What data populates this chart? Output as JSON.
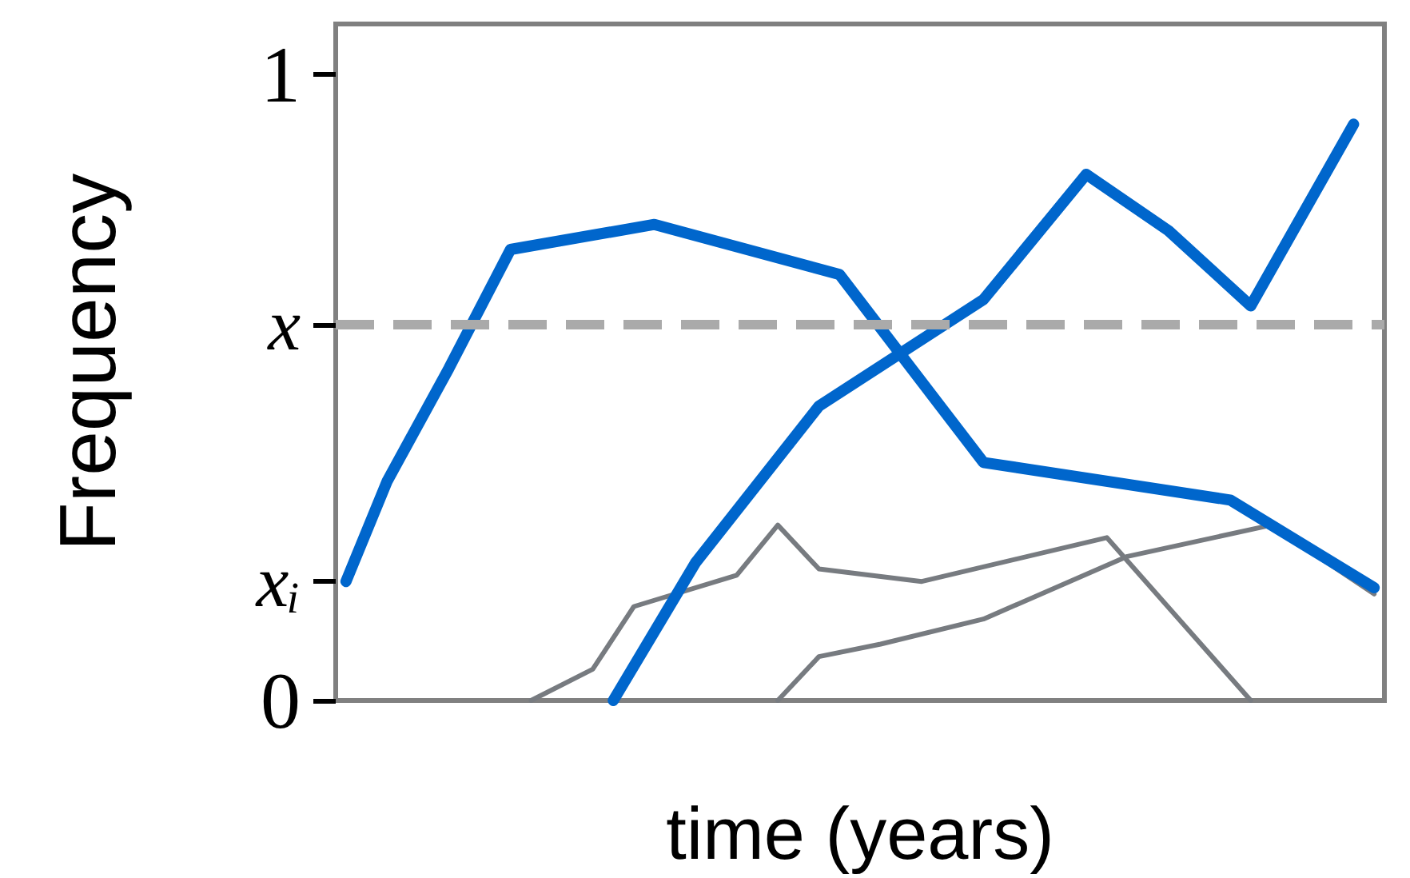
{
  "chart_data": {
    "type": "line",
    "xlabel": "time (years)",
    "ylabel": "Frequency",
    "categories": [
      null,
      null,
      null,
      null,
      null,
      null,
      null,
      null,
      null,
      null,
      null,
      null,
      null,
      null,
      null,
      null,
      null,
      null,
      null,
      null,
      null,
      null,
      null,
      null,
      null,
      null,
      null,
      null,
      null,
      null,
      null,
      null,
      null,
      null,
      null,
      null,
      null,
      null,
      null,
      null,
      null,
      null,
      null,
      null,
      null,
      null,
      null,
      null,
      null,
      null,
      null
    ],
    "ylim": [
      0,
      1.08
    ],
    "yticks": [
      0,
      {
        "value": 0.19,
        "label": "xᵢ"
      },
      {
        "value": 0.6,
        "label": "x"
      },
      1
    ],
    "tick_labels": "y",
    "grid": false,
    "marker": "none",
    "line_style": "solid",
    "ref_lines": [
      {
        "axis": "y",
        "value": 0.6,
        "label": null,
        "color": "#aaaaaa",
        "line_style": "dashed"
      }
    ],
    "series": [
      {
        "color": "#0066cc",
        "values": [
          0.19,
          null,
          0.35,
          null,
          null,
          0.53,
          null,
          null,
          0.72,
          null,
          null,
          null,
          null,
          null,
          null,
          0.76,
          null,
          null,
          null,
          null,
          null,
          null,
          null,
          null,
          0.68,
          null,
          null,
          null,
          null,
          null,
          null,
          0.38,
          null,
          null,
          null,
          null,
          null,
          null,
          null,
          null,
          null,
          null,
          null,
          0.32,
          null,
          null,
          null,
          null,
          null,
          null,
          0.18
        ]
      },
      {
        "color": "#0066cc",
        "values": [
          null,
          null,
          null,
          null,
          null,
          null,
          null,
          null,
          null,
          null,
          null,
          null,
          null,
          0,
          null,
          null,
          null,
          0.22,
          null,
          null,
          null,
          null,
          null,
          0.47,
          null,
          null,
          null,
          null,
          null,
          null,
          null,
          0.64,
          null,
          null,
          null,
          null,
          0.84,
          null,
          null,
          null,
          0.75,
          null,
          null,
          null,
          0.63,
          null,
          null,
          null,
          null,
          0.92,
          null
        ]
      },
      {
        "color": "#777b80",
        "values": [
          null,
          null,
          null,
          null,
          null,
          null,
          null,
          null,
          null,
          0,
          null,
          null,
          0.05,
          null,
          0.15,
          null,
          null,
          null,
          null,
          0.2,
          null,
          0.28,
          null,
          0.21,
          null,
          null,
          null,
          null,
          0.19,
          null,
          null,
          null,
          null,
          null,
          null,
          null,
          null,
          0.26,
          null,
          null,
          null,
          null,
          null,
          null,
          0,
          null,
          null,
          null,
          null,
          null,
          null
        ]
      },
      {
        "color": "#777b80",
        "values": [
          null,
          null,
          null,
          null,
          null,
          null,
          null,
          null,
          null,
          null,
          null,
          null,
          null,
          null,
          null,
          null,
          null,
          null,
          null,
          null,
          null,
          0,
          null,
          0.07,
          null,
          null,
          0.09,
          null,
          null,
          null,
          null,
          0.13,
          null,
          null,
          null,
          null,
          null,
          null,
          0.23,
          null,
          null,
          null,
          null,
          null,
          null,
          0.28,
          null,
          null,
          null,
          null,
          0.17
        ]
      }
    ]
  }
}
